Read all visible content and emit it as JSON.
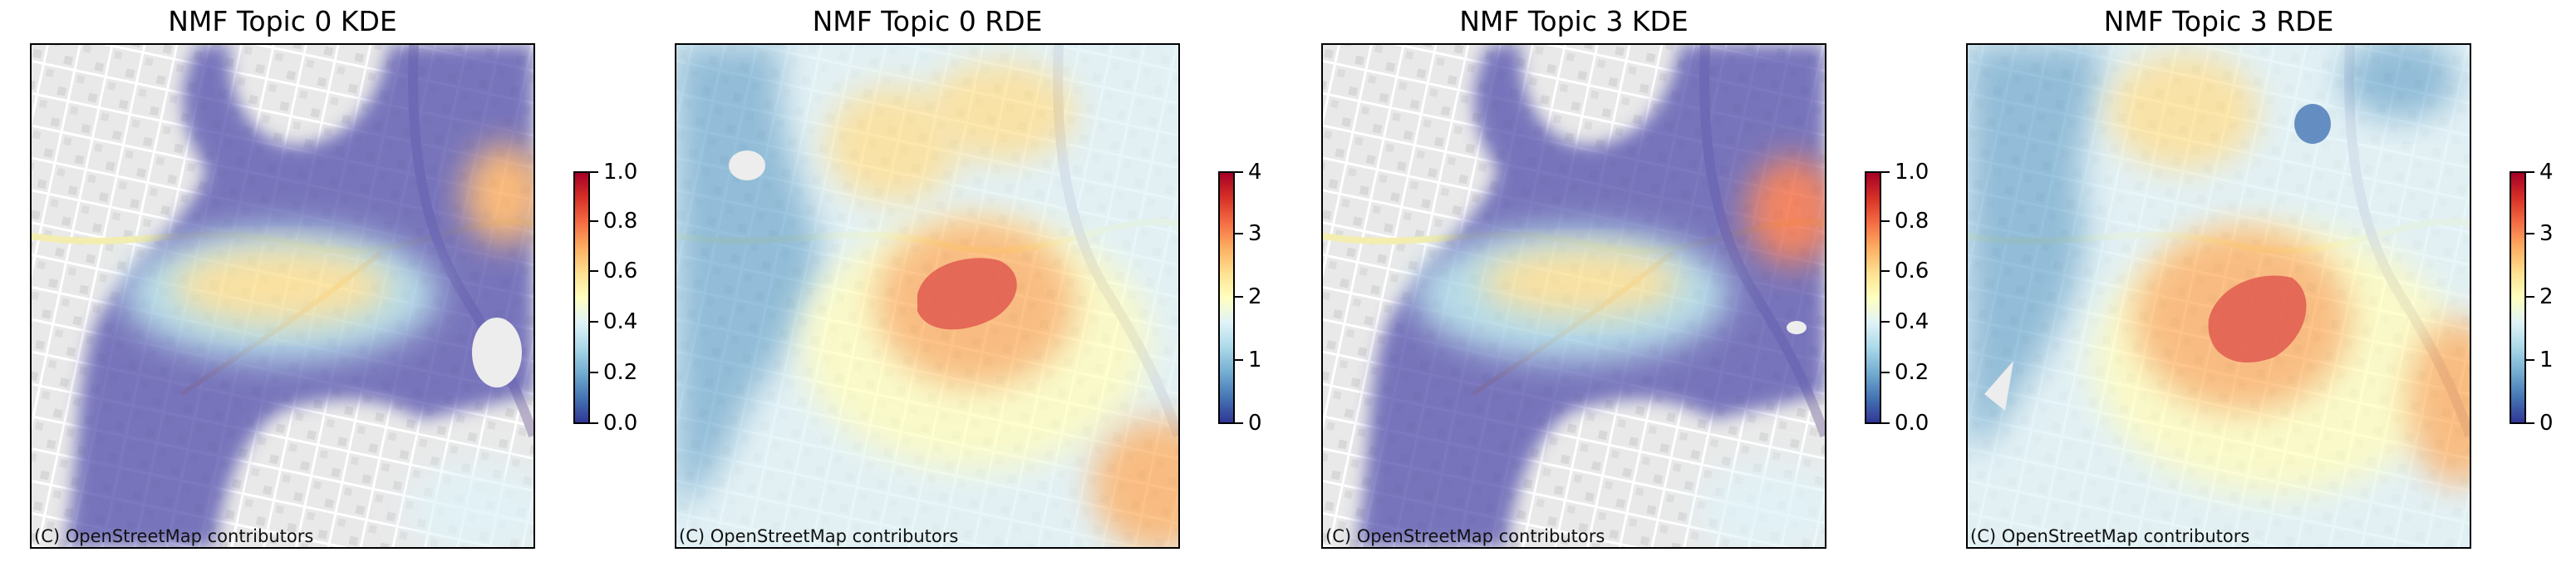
{
  "attribution": "(C) OpenStreetMap contributors",
  "colormap": [
    "#313695",
    "#4575b4",
    "#74add1",
    "#abd9e9",
    "#e0f3f8",
    "#ffffbf",
    "#fee090",
    "#fdae61",
    "#f46d43",
    "#d73027",
    "#a50026"
  ],
  "panels": [
    {
      "title": "NMF Topic 0 KDE",
      "style": "kde",
      "colorbar": {
        "min": 0.0,
        "max": 1.0,
        "ticks": [
          "0.0",
          "0.2",
          "0.4",
          "0.6",
          "0.8",
          "1.0"
        ]
      }
    },
    {
      "title": "NMF Topic 0 RDE",
      "style": "rde",
      "colorbar": {
        "min": 0,
        "max": 4,
        "ticks": [
          "0",
          "1",
          "2",
          "3",
          "4"
        ]
      }
    },
    {
      "title": "NMF Topic 3 KDE",
      "style": "kde",
      "colorbar": {
        "min": 0.0,
        "max": 1.0,
        "ticks": [
          "0.0",
          "0.2",
          "0.4",
          "0.6",
          "0.8",
          "1.0"
        ]
      }
    },
    {
      "title": "NMF Topic 3 RDE",
      "style": "rde",
      "colorbar": {
        "min": 0,
        "max": 4,
        "ticks": [
          "0",
          "1",
          "2",
          "3",
          "4"
        ]
      }
    }
  ]
}
